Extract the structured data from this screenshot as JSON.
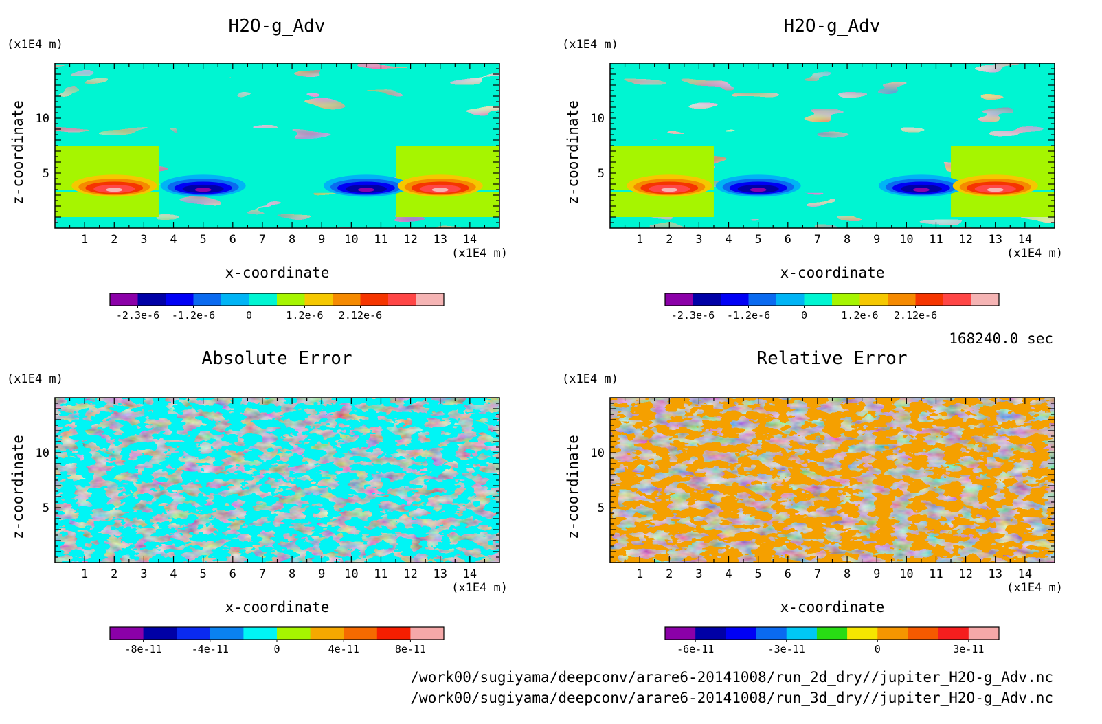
{
  "chart_data": [
    {
      "type": "heatmap",
      "title": "H2O-g_Adv",
      "xlabel": "x-coordinate",
      "ylabel": "z-coordinate",
      "x_unit": "(x1E4 m)",
      "y_unit": "(x1E4 m)",
      "xlim": [
        0,
        15
      ],
      "ylim": [
        0,
        15
      ],
      "xticks": [
        "1",
        "2",
        "3",
        "4",
        "5",
        "6",
        "7",
        "8",
        "9",
        "10",
        "11",
        "12",
        "13",
        "14"
      ],
      "yticks": [
        "5",
        "10"
      ],
      "colorbar": {
        "colors": [
          "#8b00a8",
          "#0000a6",
          "#0000f5",
          "#0a6af0",
          "#00b4f5",
          "#00f5d2",
          "#a6f500",
          "#f5c800",
          "#f58a00",
          "#f53500",
          "#ff4646",
          "#f5b4b4"
        ],
        "labels": [
          "-2.3e-6",
          "-1.2e-6",
          "0",
          "1.2e-6",
          "2.12e-6"
        ]
      },
      "features": [
        {
          "x": 2.0,
          "z": 3.4,
          "value": 2.12e-06
        },
        {
          "x": 5.0,
          "z": 3.4,
          "value": -2.3e-06
        },
        {
          "x": 10.5,
          "z": 3.4,
          "value": -2.3e-06
        },
        {
          "x": 13.0,
          "z": 3.4,
          "value": 2.12e-06
        }
      ],
      "pattern": "smooth"
    },
    {
      "type": "heatmap",
      "title": "H2O-g_Adv",
      "xlabel": "x-coordinate",
      "ylabel": "z-coordinate",
      "x_unit": "(x1E4 m)",
      "y_unit": "(x1E4 m)",
      "xlim": [
        0,
        15
      ],
      "ylim": [
        0,
        15
      ],
      "xticks": [
        "1",
        "2",
        "3",
        "4",
        "5",
        "6",
        "7",
        "8",
        "9",
        "10",
        "11",
        "12",
        "13",
        "14"
      ],
      "yticks": [
        "5",
        "10"
      ],
      "colorbar": {
        "colors": [
          "#8b00a8",
          "#0000a6",
          "#0000f5",
          "#0a6af0",
          "#00b4f5",
          "#00f5d2",
          "#a6f500",
          "#f5c800",
          "#f58a00",
          "#f53500",
          "#ff4646",
          "#f5b4b4"
        ],
        "labels": [
          "-2.3e-6",
          "-1.2e-6",
          "0",
          "1.2e-6",
          "2.12e-6"
        ]
      },
      "features": [
        {
          "x": 2.0,
          "z": 3.4,
          "value": 2.12e-06
        },
        {
          "x": 5.0,
          "z": 3.4,
          "value": -2.3e-06
        },
        {
          "x": 10.5,
          "z": 3.4,
          "value": -2.3e-06
        },
        {
          "x": 13.0,
          "z": 3.4,
          "value": 2.12e-06
        }
      ],
      "pattern": "smooth"
    },
    {
      "type": "heatmap",
      "title": "Absolute Error",
      "xlabel": "x-coordinate",
      "ylabel": "z-coordinate",
      "x_unit": "(x1E4 m)",
      "y_unit": "(x1E4 m)",
      "xlim": [
        0,
        15
      ],
      "ylim": [
        0,
        15
      ],
      "xticks": [
        "1",
        "2",
        "3",
        "4",
        "5",
        "6",
        "7",
        "8",
        "9",
        "10",
        "11",
        "12",
        "13",
        "14"
      ],
      "yticks": [
        "5",
        "10"
      ],
      "colorbar": {
        "colors": [
          "#8b00a8",
          "#0000a6",
          "#0a2af0",
          "#0a82f0",
          "#00f5f5",
          "#a6f500",
          "#f5a800",
          "#f56a00",
          "#f51e00",
          "#f5a8a8"
        ],
        "labels": [
          "-8e-11",
          "-4e-11",
          "0",
          "4e-11",
          "8e-11"
        ]
      },
      "pattern": "noisy",
      "field_colors": [
        "#00f5f5",
        "#b4f000"
      ]
    },
    {
      "type": "heatmap",
      "title": "Relative Error",
      "xlabel": "x-coordinate",
      "ylabel": "z-coordinate",
      "x_unit": "(x1E4 m)",
      "y_unit": "(x1E4 m)",
      "xlim": [
        0,
        15
      ],
      "ylim": [
        0,
        15
      ],
      "xticks": [
        "1",
        "2",
        "3",
        "4",
        "5",
        "6",
        "7",
        "8",
        "9",
        "10",
        "11",
        "12",
        "13",
        "14"
      ],
      "yticks": [
        "5",
        "10"
      ],
      "colorbar": {
        "colors": [
          "#8b00a8",
          "#0000a6",
          "#0000f5",
          "#0a6af0",
          "#00c8f5",
          "#28dc14",
          "#f5e600",
          "#f59600",
          "#f55a00",
          "#f51e1e",
          "#f5a8a8"
        ],
        "labels": [
          "-6e-11",
          "-3e-11",
          "0",
          "3e-11"
        ]
      },
      "pattern": "noisy",
      "field_colors": [
        "#f5a000",
        "#f5dc00"
      ]
    }
  ],
  "footer": {
    "time": "168240.0 sec",
    "path1": "/work00/sugiyama/deepconv/arare6-20141008/run_2d_dry//jupiter_H2O-g_Adv.nc",
    "path2": "/work00/sugiyama/deepconv/arare6-20141008/run_3d_dry//jupiter_H2O-g_Adv.nc"
  }
}
